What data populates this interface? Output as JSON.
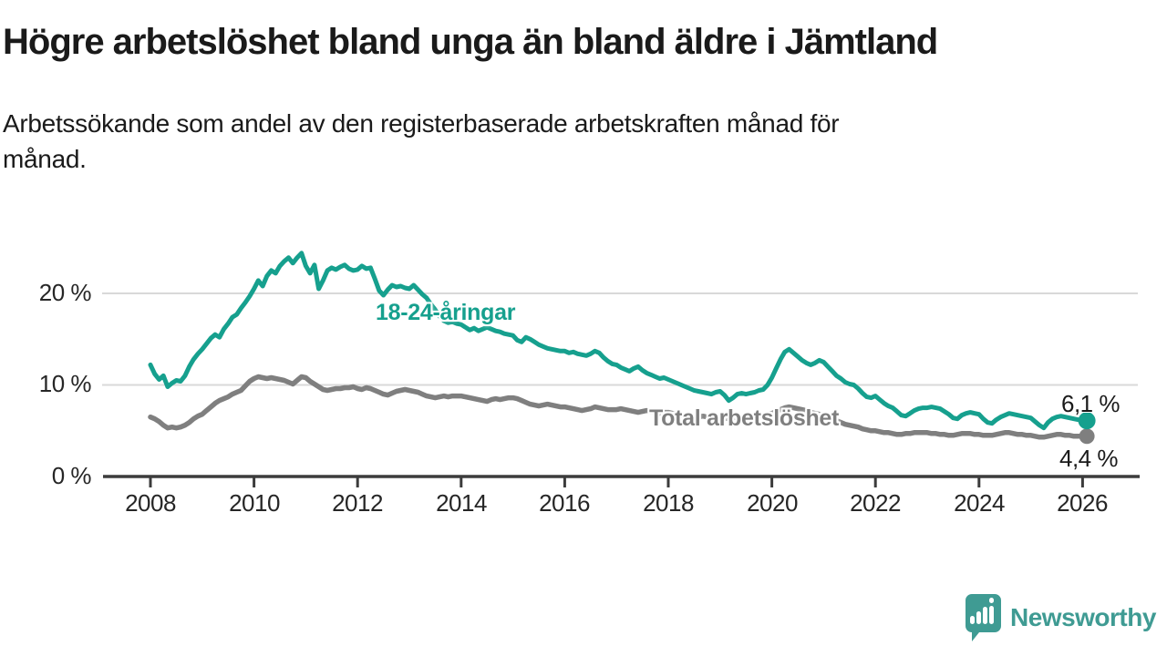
{
  "chart_data": {
    "type": "line",
    "title": "Högre arbetslöshet bland unga än bland äldre i Jämtland",
    "subtitle_line1": "Arbetssökande som andel av den registerbaserade arbetskraften månad för",
    "subtitle_line2": "månad.",
    "x_start_year": 2008,
    "points_per_year": 12,
    "x_range": [
      2008,
      2026.1
    ],
    "x_tick_labels": [
      "2008",
      "2010",
      "2012",
      "2014",
      "2016",
      "2018",
      "2020",
      "2022",
      "2024",
      "2026"
    ],
    "y_tick_labels": [
      "0 %",
      "10 %",
      "20 %"
    ],
    "y_tick_values": [
      0,
      10,
      20
    ],
    "ylim": [
      0,
      26
    ],
    "grid": "horizontal-light",
    "legend_position": "inline-labels",
    "series": [
      {
        "name": "18-24-åringar",
        "color": "#16A08E",
        "end_label": "6,1 %",
        "values": [
          12.2,
          11.2,
          10.6,
          11.0,
          9.8,
          10.2,
          10.5,
          10.4,
          11.0,
          12.0,
          12.8,
          13.4,
          13.9,
          14.5,
          15.1,
          15.5,
          15.2,
          16.1,
          16.7,
          17.4,
          17.7,
          18.4,
          19.0,
          19.7,
          20.5,
          21.4,
          20.8,
          21.9,
          22.5,
          22.2,
          23.0,
          23.5,
          23.9,
          23.3,
          23.9,
          24.4,
          23.0,
          22.2,
          23.1,
          20.5,
          21.4,
          22.5,
          22.8,
          22.6,
          22.9,
          23.1,
          22.7,
          22.5,
          22.6,
          23.0,
          22.7,
          22.8,
          21.6,
          20.3,
          19.8,
          20.4,
          20.9,
          20.7,
          20.8,
          20.6,
          20.5,
          20.9,
          20.4,
          19.9,
          19.5,
          18.8,
          18.2,
          17.5,
          17.0,
          16.8,
          16.9,
          16.7,
          16.6,
          16.3,
          16.0,
          16.2,
          15.9,
          16.1,
          16.3,
          16.1,
          15.9,
          15.8,
          15.6,
          15.5,
          15.4,
          14.9,
          14.7,
          15.2,
          15.0,
          14.7,
          14.4,
          14.2,
          14.0,
          13.9,
          13.8,
          13.7,
          13.7,
          13.5,
          13.6,
          13.4,
          13.3,
          13.2,
          13.4,
          13.7,
          13.5,
          13.0,
          12.6,
          12.3,
          12.2,
          11.9,
          11.7,
          11.5,
          11.8,
          12.0,
          11.6,
          11.3,
          11.1,
          10.9,
          10.7,
          10.8,
          10.6,
          10.4,
          10.2,
          10.0,
          9.8,
          9.6,
          9.4,
          9.3,
          9.2,
          9.1,
          9.0,
          9.2,
          9.3,
          8.9,
          8.3,
          8.6,
          9.0,
          9.1,
          9.0,
          9.1,
          9.2,
          9.4,
          9.5,
          10.0,
          10.8,
          11.8,
          12.8,
          13.6,
          13.9,
          13.5,
          13.1,
          12.7,
          12.4,
          12.2,
          12.4,
          12.7,
          12.5,
          12.0,
          11.5,
          11.0,
          10.7,
          10.3,
          10.1,
          10.0,
          9.6,
          9.1,
          8.7,
          8.6,
          8.8,
          8.4,
          8.0,
          7.7,
          7.5,
          7.1,
          6.7,
          6.6,
          6.9,
          7.2,
          7.4,
          7.5,
          7.5,
          7.6,
          7.5,
          7.4,
          7.1,
          6.8,
          6.4,
          6.3,
          6.7,
          6.9,
          7.0,
          6.9,
          6.8,
          6.3,
          5.9,
          5.8,
          6.2,
          6.5,
          6.7,
          6.9,
          6.8,
          6.7,
          6.6,
          6.5,
          6.4,
          6.0,
          5.6,
          5.3,
          5.9,
          6.3,
          6.5,
          6.6,
          6.5,
          6.4,
          6.3,
          6.2,
          6.2,
          6.1
        ]
      },
      {
        "name": "Total arbetslöshet",
        "color": "#7F7F7F",
        "end_label": "4,4 %",
        "values": [
          6.5,
          6.3,
          6.0,
          5.6,
          5.3,
          5.4,
          5.3,
          5.4,
          5.6,
          5.9,
          6.3,
          6.6,
          6.8,
          7.2,
          7.6,
          8.0,
          8.3,
          8.5,
          8.7,
          9.0,
          9.2,
          9.4,
          9.9,
          10.4,
          10.7,
          10.9,
          10.8,
          10.7,
          10.8,
          10.7,
          10.6,
          10.5,
          10.3,
          10.1,
          10.5,
          10.9,
          10.8,
          10.4,
          10.1,
          9.8,
          9.5,
          9.4,
          9.5,
          9.6,
          9.6,
          9.7,
          9.7,
          9.8,
          9.6,
          9.5,
          9.7,
          9.6,
          9.4,
          9.2,
          9.0,
          8.9,
          9.1,
          9.3,
          9.4,
          9.5,
          9.4,
          9.3,
          9.2,
          9.0,
          8.8,
          8.7,
          8.6,
          8.7,
          8.8,
          8.7,
          8.8,
          8.8,
          8.8,
          8.7,
          8.6,
          8.5,
          8.4,
          8.3,
          8.2,
          8.4,
          8.5,
          8.4,
          8.5,
          8.6,
          8.6,
          8.5,
          8.3,
          8.1,
          7.9,
          7.8,
          7.7,
          7.8,
          7.9,
          7.8,
          7.7,
          7.6,
          7.6,
          7.5,
          7.4,
          7.3,
          7.2,
          7.3,
          7.4,
          7.6,
          7.5,
          7.4,
          7.3,
          7.3,
          7.3,
          7.4,
          7.3,
          7.2,
          7.1,
          7.0,
          7.1,
          7.2,
          7.1,
          7.0,
          6.9,
          7.0,
          7.0,
          6.9,
          6.8,
          6.7,
          6.6,
          6.5,
          6.4,
          6.5,
          6.6,
          6.5,
          6.4,
          6.5,
          6.5,
          6.4,
          6.3,
          6.4,
          6.5,
          6.4,
          6.5,
          6.6,
          6.5,
          6.6,
          6.7,
          6.8,
          6.9,
          7.1,
          7.3,
          7.5,
          7.6,
          7.5,
          7.4,
          7.3,
          7.2,
          7.0,
          6.9,
          6.8,
          6.7,
          6.5,
          6.3,
          6.1,
          5.9,
          5.7,
          5.6,
          5.5,
          5.4,
          5.2,
          5.1,
          5.0,
          5.0,
          4.9,
          4.8,
          4.8,
          4.7,
          4.6,
          4.6,
          4.7,
          4.7,
          4.8,
          4.8,
          4.8,
          4.8,
          4.7,
          4.7,
          4.6,
          4.6,
          4.5,
          4.5,
          4.6,
          4.7,
          4.7,
          4.7,
          4.6,
          4.6,
          4.5,
          4.5,
          4.5,
          4.6,
          4.7,
          4.8,
          4.8,
          4.7,
          4.6,
          4.6,
          4.5,
          4.5,
          4.4,
          4.3,
          4.3,
          4.4,
          4.5,
          4.6,
          4.6,
          4.5,
          4.5,
          4.4,
          4.4,
          4.4,
          4.4
        ]
      }
    ]
  },
  "branding": {
    "logo_text": "Newsworthy",
    "logo_color": "#3F9B93"
  },
  "colors": {
    "teal": "#16A08E",
    "gray": "#7F7F7F",
    "axis": "#3C3C3C",
    "grid": "#D9D9D9",
    "text": "#1A1A1A"
  }
}
